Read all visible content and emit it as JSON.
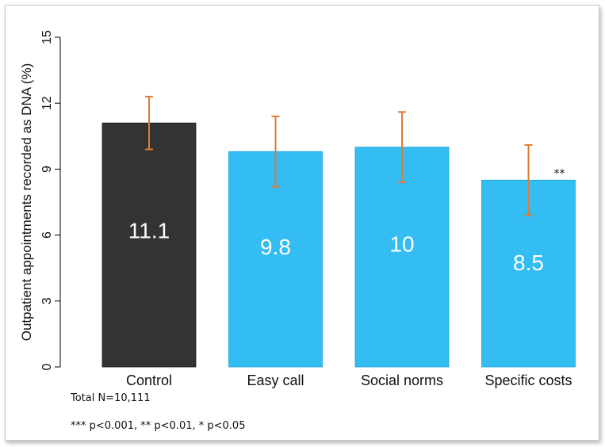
{
  "chart_data": {
    "type": "bar",
    "title": "",
    "xlabel": "",
    "ylabel": "Outpatient appointments recorded as DNA (%)",
    "categories": [
      "Control",
      "Easy call",
      "Social norms",
      "Specific costs"
    ],
    "values": [
      11.1,
      9.8,
      10,
      8.5
    ],
    "value_labels": [
      "11.1",
      "9.8",
      "10",
      "8.5"
    ],
    "error_low": [
      9.9,
      8.2,
      8.4,
      6.9
    ],
    "error_high": [
      12.3,
      11.4,
      11.6,
      10.1
    ],
    "significance": [
      "",
      "",
      "",
      "**"
    ],
    "ylim": [
      0,
      15
    ],
    "yticks": [
      "0",
      "3",
      "6",
      "9",
      "12",
      "15"
    ],
    "grid": false,
    "colors": {
      "bars": [
        "#333333",
        "#33bdf2",
        "#33bdf2",
        "#33bdf2"
      ],
      "error_bars": "#e07a35",
      "value_label": "#ffffff"
    }
  },
  "notes": {
    "total": "Total N=10,111",
    "significance_key": "*** p<0.001, ** p<0.01, * p<0.05"
  }
}
